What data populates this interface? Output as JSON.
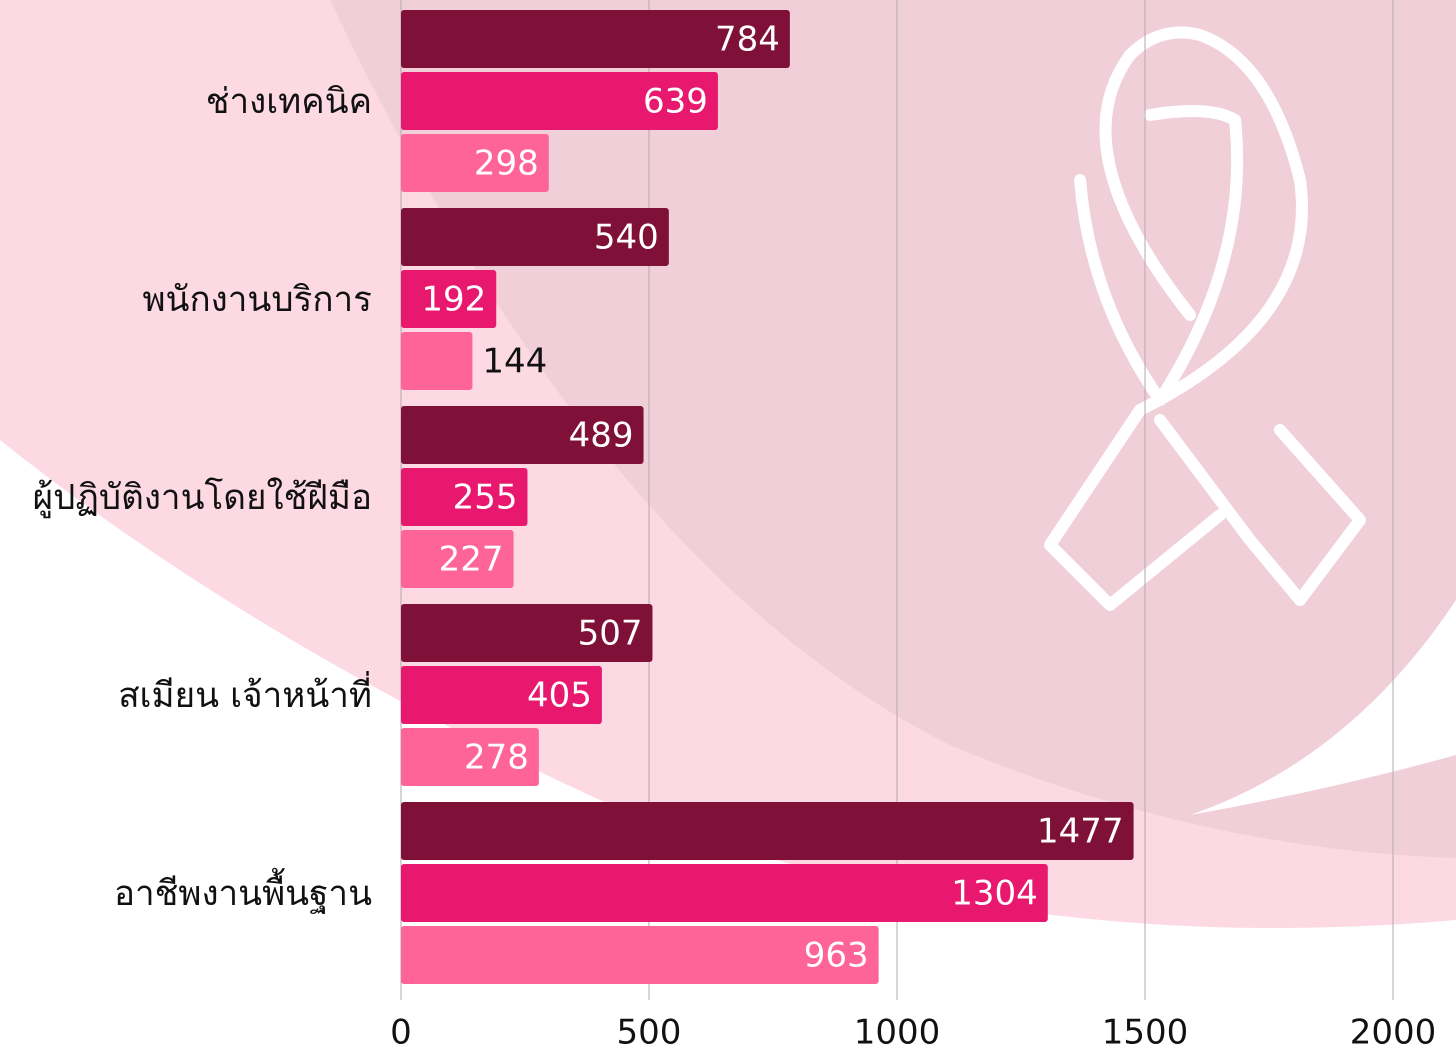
{
  "chart_data": {
    "type": "hbar",
    "categories": [
      "ช่างเทคนิค",
      "พนักงานบริการ",
      "ผู้ปฏิบัติงานโดยใช้ฝีมือ",
      "สเมียน เจ้าหน้าที่",
      "อาชีพงานพื้นฐาน"
    ],
    "series": [
      {
        "color": "#7f1037",
        "values": [
          784,
          540,
          489,
          507,
          1477
        ]
      },
      {
        "color": "#e8186e",
        "values": [
          639,
          192,
          255,
          405,
          1304
        ]
      },
      {
        "color": "#ff6499",
        "values": [
          298,
          144,
          227,
          278,
          963
        ]
      }
    ],
    "xlim": [
      0,
      2000
    ],
    "xticks": [
      0,
      500,
      1000,
      1500,
      2000
    ],
    "grid": true
  }
}
